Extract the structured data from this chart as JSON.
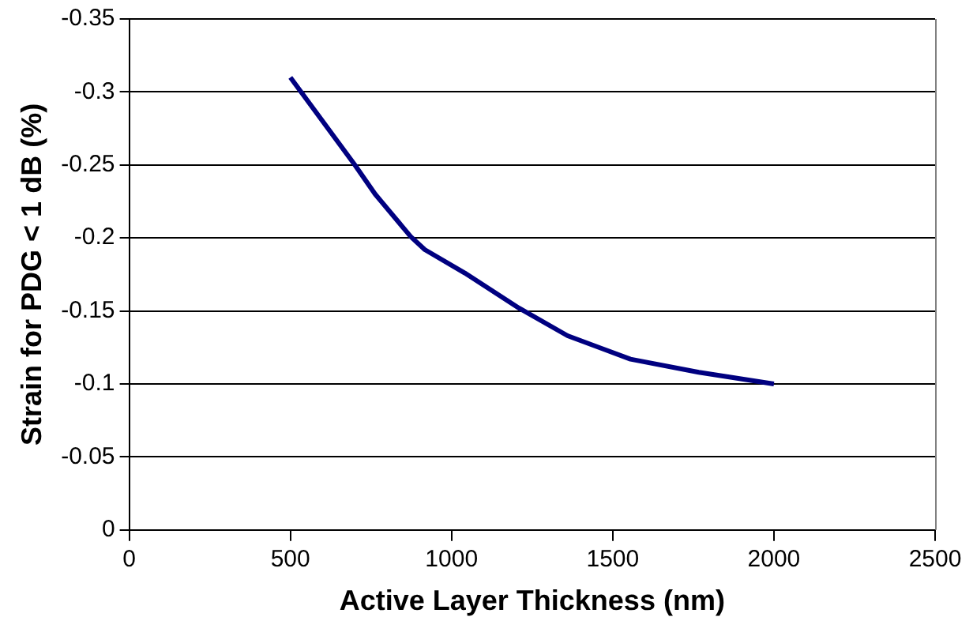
{
  "chart_data": {
    "type": "line",
    "xlabel": "Active Layer Thickness (nm)",
    "ylabel": "Strain for PDG < 1 dB (%)",
    "x": [
      500,
      700,
      763,
      873,
      917,
      1041,
      1209,
      1360,
      1555,
      1767,
      2000
    ],
    "series": [
      {
        "color": "#000080",
        "values": [
          -0.31,
          -0.25,
          -0.23,
          -0.201,
          -0.192,
          -0.176,
          -0.152,
          -0.133,
          -0.117,
          -0.108,
          -0.1
        ]
      }
    ],
    "xlim": [
      0,
      2500
    ],
    "xticks": [
      0,
      500,
      1000,
      1500,
      2000,
      2500
    ],
    "ylim": [
      0,
      -0.35
    ],
    "yticks": [
      0,
      -0.05,
      -0.1,
      -0.15,
      -0.2,
      -0.25,
      -0.3,
      -0.35
    ],
    "grid": "y",
    "legend": false,
    "marker": "none",
    "line_style": "solid"
  }
}
